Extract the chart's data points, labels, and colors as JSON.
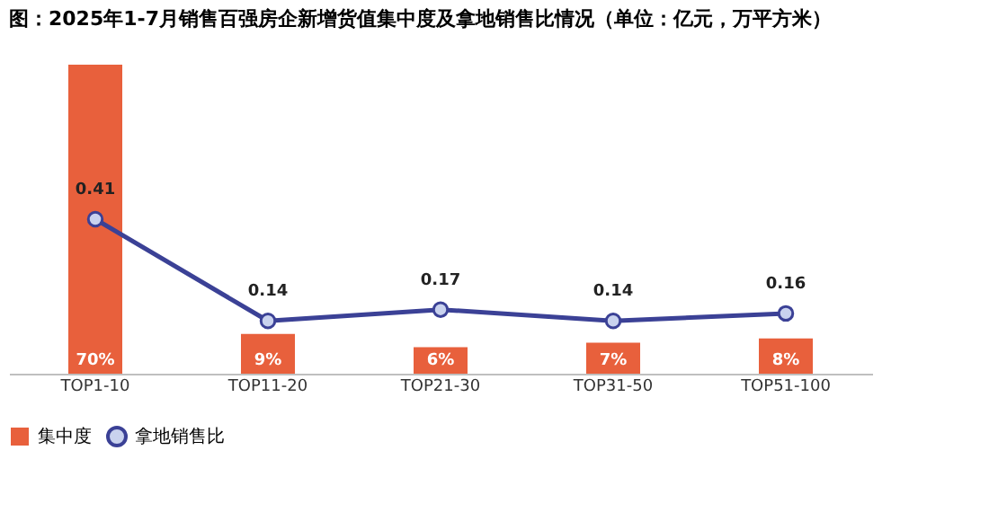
{
  "chart_data": {
    "type": "bar",
    "title": "图：2025年1-7月销售百强房企新增货值集中度及拿地销售比情况（单位：亿元，万平方米）",
    "categories": [
      "TOP1-10",
      "TOP11-20",
      "TOP21-30",
      "TOP31-50",
      "TOP51-100"
    ],
    "series": [
      {
        "name": "集中度",
        "color": "#e8603c",
        "values": [
          70,
          9,
          6,
          7,
          8
        ],
        "value_labels": [
          "70%",
          "9%",
          "6%",
          "7%",
          "8%"
        ]
      },
      {
        "name": "拿地销售比",
        "type": "line",
        "axis": "y2",
        "color": "#3b4196",
        "values": [
          0.41,
          0.14,
          0.17,
          0.14,
          0.16
        ],
        "value_labels": [
          "0.41",
          "0.14",
          "0.17",
          "0.14",
          "0.16"
        ]
      }
    ],
    "marker": "circle",
    "line_style": "solid",
    "grid": false,
    "legend": "bottom"
  }
}
